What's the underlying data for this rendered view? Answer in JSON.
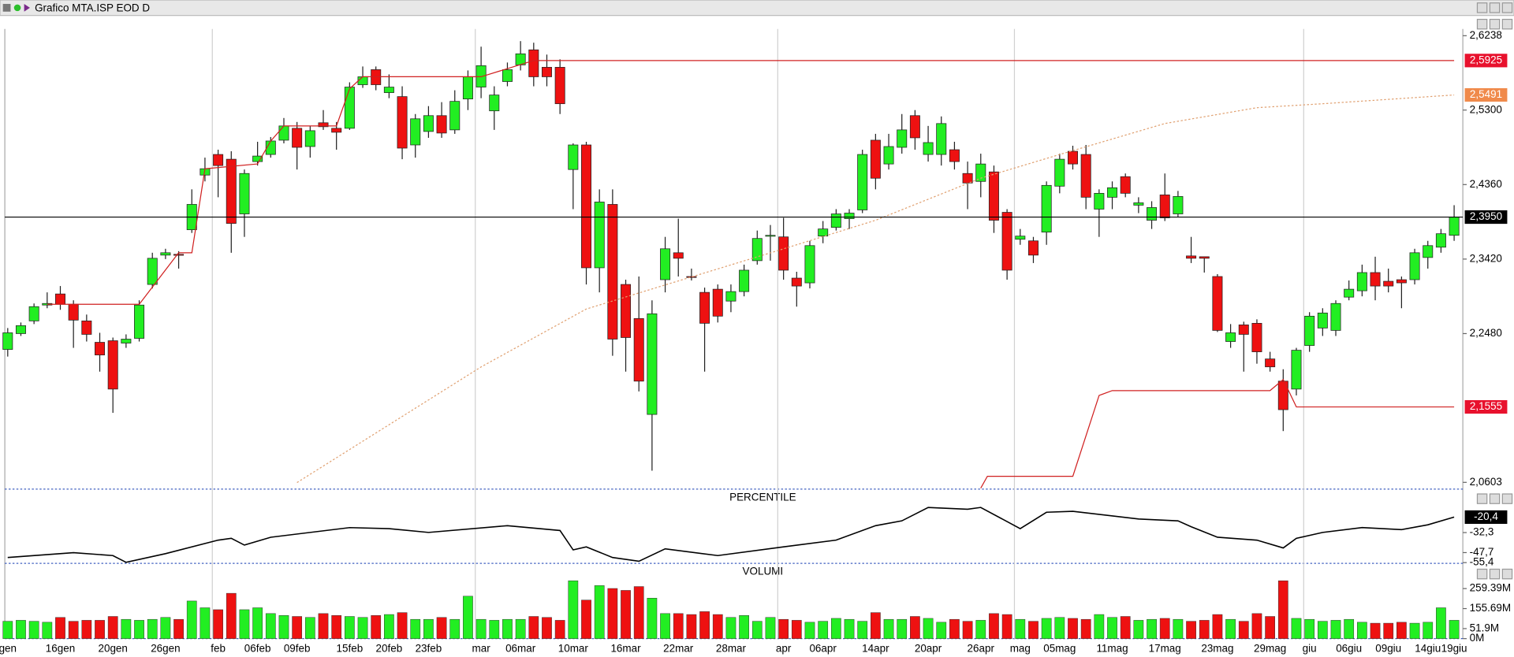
{
  "chart_data": [
    {
      "type": "candlestick",
      "title": "Grafico MTA.ISP EOD D",
      "categories": [
        "gen",
        null,
        null,
        null,
        "16gen",
        null,
        null,
        null,
        "20gen",
        null,
        null,
        null,
        "26gen",
        null,
        null,
        null,
        "feb",
        null,
        null,
        "06feb",
        null,
        null,
        "09feb",
        null,
        null,
        null,
        "15feb",
        null,
        null,
        "20feb",
        null,
        null,
        "23feb",
        null,
        null,
        null,
        "mar",
        null,
        null,
        "06mar",
        null,
        null,
        null,
        "10mar",
        null,
        null,
        null,
        "16mar",
        null,
        null,
        null,
        "22mar",
        null,
        null,
        null,
        "28mar",
        null,
        null,
        null,
        "apr",
        null,
        null,
        "06apr",
        null,
        null,
        null,
        "14apr",
        null,
        null,
        null,
        "20apr",
        null,
        null,
        null,
        "26apr",
        null,
        null,
        "mag",
        null,
        null,
        "05mag",
        null,
        null,
        null,
        "11mag",
        null,
        null,
        null,
        "17mag",
        null,
        null,
        null,
        "23mag",
        null,
        null,
        null,
        "29mag",
        null,
        null,
        "giu",
        null,
        null,
        "06giu",
        null,
        null,
        "09giu",
        null,
        null,
        "14giu",
        null,
        "19giu"
      ],
      "open": [
        2.228,
        2.248,
        2.264,
        2.284,
        2.298,
        2.285,
        2.264,
        2.237,
        2.239,
        2.236,
        2.242,
        2.31,
        2.347,
        2.348,
        2.379,
        2.448,
        2.474,
        2.468,
        2.399,
        2.465,
        2.474,
        2.492,
        2.507,
        2.484,
        2.514,
        2.507,
        2.507,
        2.562,
        2.581,
        2.552,
        2.547,
        2.486,
        2.503,
        2.523,
        2.505,
        2.544,
        2.559,
        2.529,
        2.566,
        2.587,
        2.606,
        2.584,
        2.584,
        2.455,
        2.486,
        2.331,
        2.411,
        2.31,
        2.267,
        2.146,
        2.316,
        2.35,
        2.32,
        2.3,
        2.304,
        2.289,
        2.301,
        2.34,
        2.371,
        2.37,
        2.318,
        2.312,
        2.371,
        2.382,
        2.393,
        2.404,
        2.492,
        2.462,
        2.483,
        2.523,
        2.474,
        2.474,
        2.48,
        2.45,
        2.44,
        2.452,
        2.401,
        2.367,
        2.365,
        2.376,
        2.434,
        2.478,
        2.474,
        2.405,
        2.42,
        2.446,
        2.41,
        2.391,
        2.423,
        2.399,
        2.346,
        2.345,
        2.32,
        2.238,
        2.259,
        2.261,
        2.216,
        2.188,
        2.178,
        2.233,
        2.255,
        2.252,
        2.294,
        2.302,
        2.325,
        2.314,
        2.316,
        2.316,
        2.344,
        2.357,
        2.372
      ],
      "high": [
        2.255,
        2.262,
        2.286,
        2.3,
        2.308,
        2.29,
        2.272,
        2.249,
        2.243,
        2.247,
        2.29,
        2.35,
        2.355,
        2.352,
        2.43,
        2.47,
        2.48,
        2.478,
        2.455,
        2.49,
        2.496,
        2.52,
        2.515,
        2.51,
        2.53,
        2.515,
        2.565,
        2.585,
        2.585,
        2.575,
        2.56,
        2.525,
        2.535,
        2.54,
        2.555,
        2.58,
        2.61,
        2.56,
        2.59,
        2.617,
        2.615,
        2.6,
        2.594,
        2.488,
        2.49,
        2.43,
        2.43,
        2.316,
        2.32,
        2.29,
        2.37,
        2.393,
        2.33,
        2.306,
        2.31,
        2.31,
        2.335,
        2.378,
        2.385,
        2.394,
        2.326,
        2.365,
        2.39,
        2.405,
        2.405,
        2.48,
        2.5,
        2.5,
        2.525,
        2.53,
        2.51,
        2.522,
        2.49,
        2.465,
        2.475,
        2.46,
        2.405,
        2.38,
        2.37,
        2.44,
        2.475,
        2.485,
        2.486,
        2.43,
        2.44,
        2.45,
        2.42,
        2.415,
        2.45,
        2.428,
        2.37,
        2.345,
        2.323,
        2.26,
        2.263,
        2.266,
        2.225,
        2.203,
        2.23,
        2.275,
        2.28,
        2.29,
        2.315,
        2.335,
        2.345,
        2.33,
        2.32,
        2.355,
        2.365,
        2.38,
        2.41
      ],
      "low": [
        2.219,
        2.245,
        2.26,
        2.28,
        2.278,
        2.23,
        2.238,
        2.2,
        2.148,
        2.23,
        2.238,
        2.305,
        2.342,
        2.33,
        2.375,
        2.44,
        2.42,
        2.35,
        2.37,
        2.46,
        2.47,
        2.488,
        2.455,
        2.47,
        2.505,
        2.48,
        2.505,
        2.558,
        2.555,
        2.545,
        2.468,
        2.47,
        2.495,
        2.495,
        2.5,
        2.53,
        2.545,
        2.505,
        2.56,
        2.58,
        2.56,
        2.56,
        2.525,
        2.405,
        2.31,
        2.3,
        2.22,
        2.2,
        2.175,
        2.075,
        2.3,
        2.32,
        2.315,
        2.2,
        2.262,
        2.275,
        2.295,
        2.335,
        2.34,
        2.316,
        2.282,
        2.305,
        2.362,
        2.378,
        2.38,
        2.4,
        2.43,
        2.455,
        2.475,
        2.48,
        2.465,
        2.46,
        2.455,
        2.405,
        2.42,
        2.375,
        2.316,
        2.36,
        2.337,
        2.36,
        2.425,
        2.455,
        2.405,
        2.37,
        2.405,
        2.42,
        2.4,
        2.38,
        2.39,
        2.395,
        2.337,
        2.325,
        2.25,
        2.23,
        2.2,
        2.21,
        2.2,
        2.125,
        2.17,
        2.225,
        2.245,
        2.245,
        2.29,
        2.295,
        2.29,
        2.3,
        2.28,
        2.31,
        2.33,
        2.35,
        2.365
      ],
      "close": [
        2.249,
        2.258,
        2.282,
        2.286,
        2.285,
        2.265,
        2.247,
        2.221,
        2.178,
        2.241,
        2.284,
        2.343,
        2.35,
        2.347,
        2.411,
        2.456,
        2.46,
        2.387,
        2.45,
        2.472,
        2.491,
        2.51,
        2.483,
        2.504,
        2.509,
        2.502,
        2.559,
        2.572,
        2.562,
        2.559,
        2.482,
        2.519,
        2.523,
        2.501,
        2.541,
        2.572,
        2.586,
        2.549,
        2.581,
        2.601,
        2.572,
        2.572,
        2.538,
        2.486,
        2.331,
        2.414,
        2.241,
        2.243,
        2.188,
        2.273,
        2.355,
        2.343,
        2.319,
        2.261,
        2.27,
        2.301,
        2.328,
        2.368,
        2.372,
        2.328,
        2.308,
        2.359,
        2.38,
        2.399,
        2.4,
        2.474,
        2.444,
        2.484,
        2.505,
        2.495,
        2.489,
        2.513,
        2.465,
        2.438,
        2.462,
        2.391,
        2.328,
        2.371,
        2.347,
        2.435,
        2.468,
        2.462,
        2.42,
        2.425,
        2.432,
        2.425,
        2.413,
        2.407,
        2.394,
        2.421,
        2.343,
        2.343,
        2.252,
        2.249,
        2.247,
        2.225,
        2.206,
        2.152,
        2.227,
        2.27,
        2.274,
        2.286,
        2.304,
        2.325,
        2.308,
        2.308,
        2.312,
        2.35,
        2.359,
        2.374,
        2.395
      ],
      "up_color": "#22ee22",
      "down_color": "#ee1111",
      "ylim": [
        2.053,
        2.6323
      ],
      "yticks": [
        {
          "value": 2.6238,
          "label": "2,6238"
        },
        {
          "value": 2.53,
          "label": "2,5300"
        },
        {
          "value": 2.436,
          "label": "2,4360"
        },
        {
          "value": 2.342,
          "label": "2,3420"
        },
        {
          "value": 2.248,
          "label": "2,2480"
        },
        {
          "value": 2.0603,
          "label": "2,0603"
        }
      ],
      "levels": [
        {
          "value": 2.5925,
          "label": "2,5925",
          "color": "#e8112d"
        },
        {
          "value": 2.5491,
          "label": "2,5491",
          "color": "#f08a4b"
        },
        {
          "value": 2.395,
          "label": "2,3950",
          "color": "#000000",
          "full_line": true
        },
        {
          "value": 2.1555,
          "label": "2,1555",
          "color": "#e8112d"
        }
      ],
      "series": [
        {
          "color": "#e0a070",
          "dash": "2 2",
          "x": [
            22,
            36,
            44,
            59,
            66,
            74,
            80,
            88,
            95,
            100,
            110
          ],
          "values": [
            2.06,
            2.206,
            2.279,
            2.355,
            2.391,
            2.444,
            2.474,
            2.513,
            2.533,
            2.538,
            2.5491
          ]
        },
        {
          "color": "#d02020",
          "x": [
            3,
            10,
            13,
            14,
            15,
            19,
            20,
            21,
            25,
            26,
            27,
            36,
            40,
            110
          ],
          "values": [
            2.285,
            2.285,
            2.35,
            2.35,
            2.456,
            2.462,
            2.491,
            2.51,
            2.51,
            2.557,
            2.572,
            2.572,
            2.5925,
            2.5925
          ]
        },
        {
          "color": "#d02020",
          "x": [
            74,
            74.5,
            81,
            83,
            84,
            96,
            97,
            98,
            110
          ],
          "values": [
            2.053,
            2.068,
            2.068,
            2.17,
            2.176,
            2.176,
            2.19,
            2.1555,
            2.1555
          ]
        }
      ]
    },
    {
      "type": "line",
      "title": "PERCENTILE",
      "color": "#000000",
      "x": [
        0,
        5,
        8,
        9,
        12,
        16,
        17,
        18,
        20,
        26,
        29,
        32,
        38,
        42,
        43,
        44,
        46,
        48,
        50,
        54,
        59,
        63,
        66,
        68,
        70,
        73,
        74,
        77,
        79,
        81,
        86,
        89,
        90,
        92,
        95,
        97,
        98,
        100,
        103,
        106,
        108,
        110
      ],
      "values": [
        -51.5,
        -47.8,
        -50,
        -55.2,
        -48.5,
        -38.1,
        -36.7,
        -41.9,
        -35.9,
        -28.5,
        -29.3,
        -32.2,
        -27,
        -30.7,
        -45.6,
        -43.3,
        -51.5,
        -54.4,
        -44.8,
        -50,
        -43.3,
        -38.1,
        -27,
        -23.3,
        -13,
        -14.4,
        -13,
        -29.3,
        -16.7,
        -15.9,
        -21.9,
        -23.3,
        -27.8,
        -35.9,
        -38.1,
        -44.1,
        -36.7,
        -32.2,
        -28.5,
        -30,
        -26.3,
        -20.4
      ],
      "value_labels": [
        null,
        null,
        null,
        null,
        null,
        null,
        null,
        null,
        null,
        null,
        null,
        null,
        null,
        null,
        null,
        null,
        null,
        null,
        null,
        null,
        null,
        null,
        null,
        null,
        null,
        null,
        null,
        null,
        null,
        null,
        null,
        null,
        null,
        null,
        null,
        null,
        null,
        null,
        null,
        null,
        null,
        "-20,4"
      ],
      "ylim": [
        -56,
        -10
      ],
      "yticks": [
        {
          "value": -32.3,
          "label": "-32,3"
        },
        {
          "value": -47.7,
          "label": "-47,7"
        },
        {
          "value": -55.4,
          "label": "-55,4"
        }
      ]
    },
    {
      "type": "bar",
      "title": "VOLUMI",
      "values": [
        90,
        95,
        90,
        85,
        110,
        90,
        95,
        95,
        115,
        100,
        95,
        100,
        110,
        100,
        195,
        160,
        150,
        235,
        150,
        160,
        130,
        120,
        115,
        110,
        130,
        120,
        115,
        110,
        120,
        125,
        135,
        100,
        100,
        110,
        100,
        220,
        100,
        95,
        100,
        100,
        115,
        110,
        95,
        300,
        200,
        275,
        260,
        250,
        270,
        210,
        130,
        130,
        125,
        140,
        125,
        110,
        120,
        90,
        110,
        100,
        95,
        85,
        90,
        105,
        100,
        90,
        135,
        100,
        100,
        115,
        105,
        85,
        100,
        90,
        95,
        130,
        125,
        100,
        90,
        105,
        110,
        105,
        100,
        125,
        110,
        115,
        95,
        100,
        105,
        100,
        90,
        95,
        125,
        100,
        90,
        130,
        115,
        300,
        105,
        100,
        90,
        95,
        100,
        85,
        80,
        80,
        85,
        80,
        85,
        160,
        95
      ],
      "ylim": [
        0,
        300
      ],
      "yticks": [
        {
          "value": 0,
          "label": "0M"
        },
        {
          "value": 51.9,
          "label": "51.9M"
        },
        {
          "value": 155.69,
          "label": "155.69M"
        },
        {
          "value": 259.39,
          "label": "259.39M"
        }
      ]
    }
  ]
}
